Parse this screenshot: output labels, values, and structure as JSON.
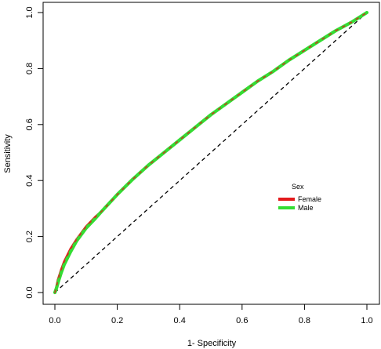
{
  "chart_data": {
    "type": "line",
    "title": "",
    "xlabel": "1- Specificity",
    "ylabel": "Sensitivity",
    "xlim": [
      0,
      1
    ],
    "ylim": [
      0,
      1
    ],
    "x_ticks": [
      "0.0",
      "0.2",
      "0.4",
      "0.6",
      "0.8",
      "1.0"
    ],
    "y_ticks": [
      "0.0",
      "0.2",
      "0.4",
      "0.6",
      "0.8",
      "1.0"
    ],
    "grid": false,
    "legend": {
      "title": "Sex",
      "placement": "center-right",
      "entries": [
        "Female",
        "Male"
      ]
    },
    "reference_line": {
      "style": "dashed",
      "from": [
        0,
        0
      ],
      "to": [
        1,
        1
      ],
      "color": "#000000"
    },
    "series": [
      {
        "name": "Female",
        "color": "#e31a1c",
        "x": [
          0,
          0.005,
          0.01,
          0.02,
          0.03,
          0.05,
          0.07,
          0.1,
          0.13,
          0.15,
          0.2,
          0.25,
          0.3,
          0.35,
          0.4,
          0.45,
          0.5,
          0.55,
          0.6,
          0.65,
          0.7,
          0.75,
          0.8,
          0.85,
          0.9,
          0.95,
          1.0
        ],
        "y": [
          0,
          0.02,
          0.045,
          0.08,
          0.11,
          0.155,
          0.19,
          0.235,
          0.27,
          0.29,
          0.35,
          0.405,
          0.455,
          0.5,
          0.545,
          0.59,
          0.635,
          0.675,
          0.715,
          0.755,
          0.79,
          0.83,
          0.865,
          0.9,
          0.935,
          0.965,
          1.0
        ]
      },
      {
        "name": "Male",
        "color": "#33dd33",
        "x": [
          0,
          0.005,
          0.01,
          0.02,
          0.03,
          0.05,
          0.07,
          0.1,
          0.13,
          0.15,
          0.2,
          0.25,
          0.3,
          0.35,
          0.4,
          0.45,
          0.5,
          0.55,
          0.6,
          0.65,
          0.7,
          0.75,
          0.8,
          0.85,
          0.9,
          0.95,
          1.0
        ],
        "y": [
          0,
          0.015,
          0.035,
          0.07,
          0.1,
          0.145,
          0.185,
          0.23,
          0.265,
          0.29,
          0.35,
          0.405,
          0.455,
          0.5,
          0.545,
          0.59,
          0.635,
          0.675,
          0.715,
          0.755,
          0.79,
          0.83,
          0.865,
          0.9,
          0.935,
          0.965,
          1.0
        ]
      }
    ]
  }
}
